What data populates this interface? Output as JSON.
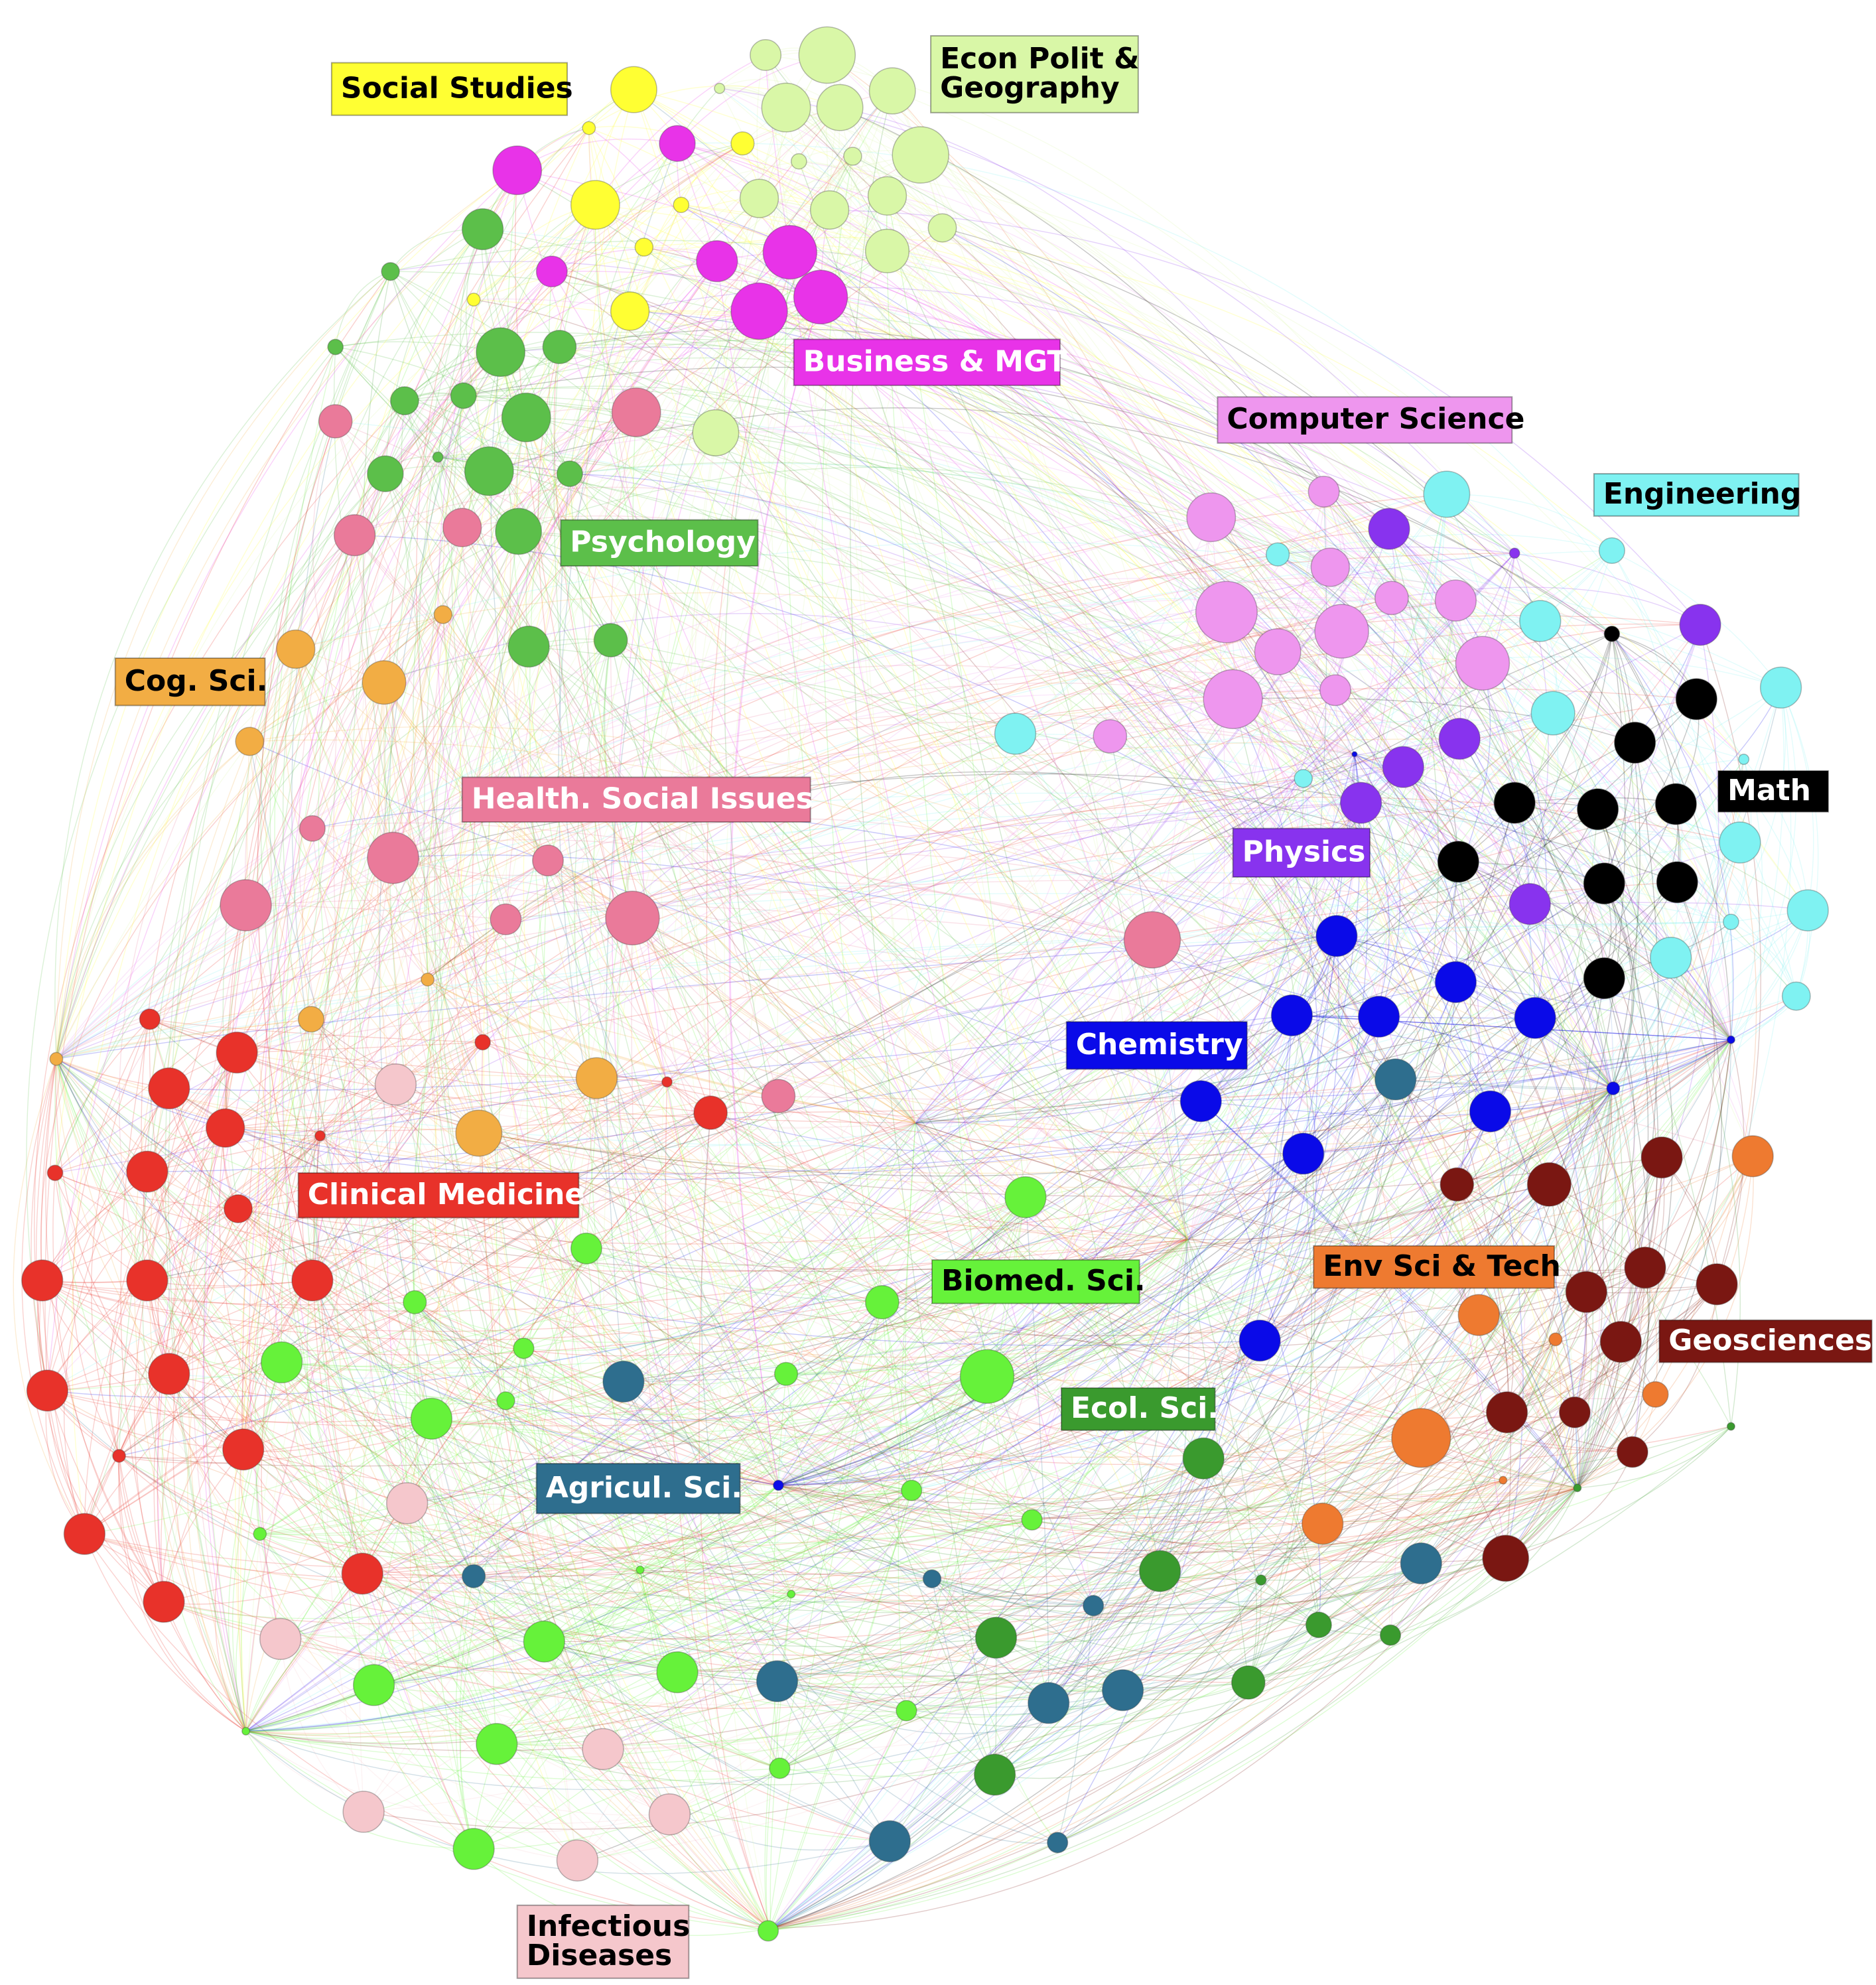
{
  "clusters": [
    {
      "key": "social",
      "label": [
        "Social Studies"
      ],
      "fill": "#ffff33",
      "text": "#000000",
      "node": "#ffff33"
    },
    {
      "key": "econ",
      "label": [
        "Econ Polit &",
        "Geography"
      ],
      "fill": "#d9f7a7",
      "text": "#000000",
      "node": "#d9f7a7"
    },
    {
      "key": "business",
      "label": [
        "Business & MGT"
      ],
      "fill": "#e833e8",
      "text": "#ffffff",
      "node": "#e833e8"
    },
    {
      "key": "psych",
      "label": [
        "Psychology"
      ],
      "fill": "#5cbf4a",
      "text": "#ffffff",
      "node": "#5cbf4a"
    },
    {
      "key": "cog",
      "label": [
        "Cog. Sci."
      ],
      "fill": "#f2ad44",
      "text": "#000000",
      "node": "#f2ad44"
    },
    {
      "key": "health",
      "label": [
        "Health. Social Issues"
      ],
      "fill": "#ea7a9a",
      "text": "#ffffff",
      "node": "#ea7a9a"
    },
    {
      "key": "clinical",
      "label": [
        "Clinical Medicine"
      ],
      "fill": "#e8322a",
      "text": "#ffffff",
      "node": "#e8322a"
    },
    {
      "key": "biomed",
      "label": [
        "Biomed. Sci."
      ],
      "fill": "#66f23a",
      "text": "#000000",
      "node": "#66f23a"
    },
    {
      "key": "agri",
      "label": [
        "Agricul. Sci."
      ],
      "fill": "#2e6e8e",
      "text": "#ffffff",
      "node": "#2e6e8e"
    },
    {
      "key": "ecol",
      "label": [
        "Ecol. Sci."
      ],
      "fill": "#3a9a2e",
      "text": "#ffffff",
      "node": "#3a9a2e"
    },
    {
      "key": "infect",
      "label": [
        "Infectious",
        "Diseases"
      ],
      "fill": "#f5c7cc",
      "text": "#000000",
      "node": "#f5c7cc"
    },
    {
      "key": "cs",
      "label": [
        "Computer Science"
      ],
      "fill": "#ee96ee",
      "text": "#000000",
      "node": "#ee96ee"
    },
    {
      "key": "eng",
      "label": [
        "Engineering"
      ],
      "fill": "#7ff2f2",
      "text": "#000000",
      "node": "#7ff2f2"
    },
    {
      "key": "math",
      "label": [
        "Math"
      ],
      "fill": "#000000",
      "text": "#ffffff",
      "node": "#000000"
    },
    {
      "key": "physics",
      "label": [
        "Physics"
      ],
      "fill": "#8833ee",
      "text": "#ffffff",
      "node": "#8833ee"
    },
    {
      "key": "chem",
      "label": [
        "Chemistry"
      ],
      "fill": "#0a0ae8",
      "text": "#ffffff",
      "node": "#0a0ae8"
    },
    {
      "key": "env",
      "label": [
        "Env Sci & Tech"
      ],
      "fill": "#ee7a30",
      "text": "#000000",
      "node": "#ee7a30"
    },
    {
      "key": "geo",
      "label": [
        "Geosciences"
      ],
      "fill": "#7a1712",
      "text": "#ffffff",
      "node": "#7a1712"
    }
  ]
}
